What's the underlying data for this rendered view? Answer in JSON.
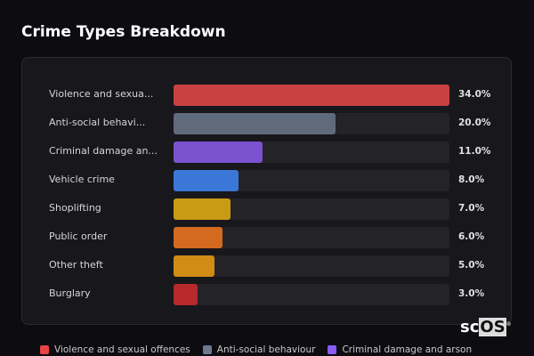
{
  "title": "Crime Types Breakdown",
  "watermark": {
    "a": "sc",
    "b": "OS",
    "mark": "®"
  },
  "chart_data": {
    "type": "bar",
    "orientation": "horizontal",
    "title": "Crime Types Breakdown",
    "categories": [
      "Violence and sexual offences",
      "Anti-social behaviour",
      "Criminal damage and arson",
      "Vehicle crime",
      "Shoplifting",
      "Public order",
      "Other theft",
      "Burglary"
    ],
    "display_labels": [
      "Violence and sexua...",
      "Anti-social behavi...",
      "Criminal damage an...",
      "Vehicle crime",
      "Shoplifting",
      "Public order",
      "Other theft",
      "Burglary"
    ],
    "values": [
      34.0,
      20.0,
      11.0,
      8.0,
      7.0,
      6.0,
      5.0,
      3.0
    ],
    "value_labels": [
      "34.0%",
      "20.0%",
      "11.0%",
      "8.0%",
      "7.0%",
      "6.0%",
      "5.0%",
      "3.0%"
    ],
    "unit": "%",
    "xlim": [
      0,
      34
    ],
    "colors": [
      "#c94141",
      "#5f6b7b",
      "#7b52cf",
      "#3a77d6",
      "#c99b14",
      "#d36a1f",
      "#d08c15",
      "#b7292b"
    ],
    "legend": [
      {
        "name": "Violence and sexual offences",
        "color": "#e84444"
      },
      {
        "name": "Anti-social behaviour",
        "color": "#6b7a8f"
      },
      {
        "name": "Criminal damage and arson",
        "color": "#8b5cf6"
      }
    ],
    "legend_placement": "bottom"
  }
}
